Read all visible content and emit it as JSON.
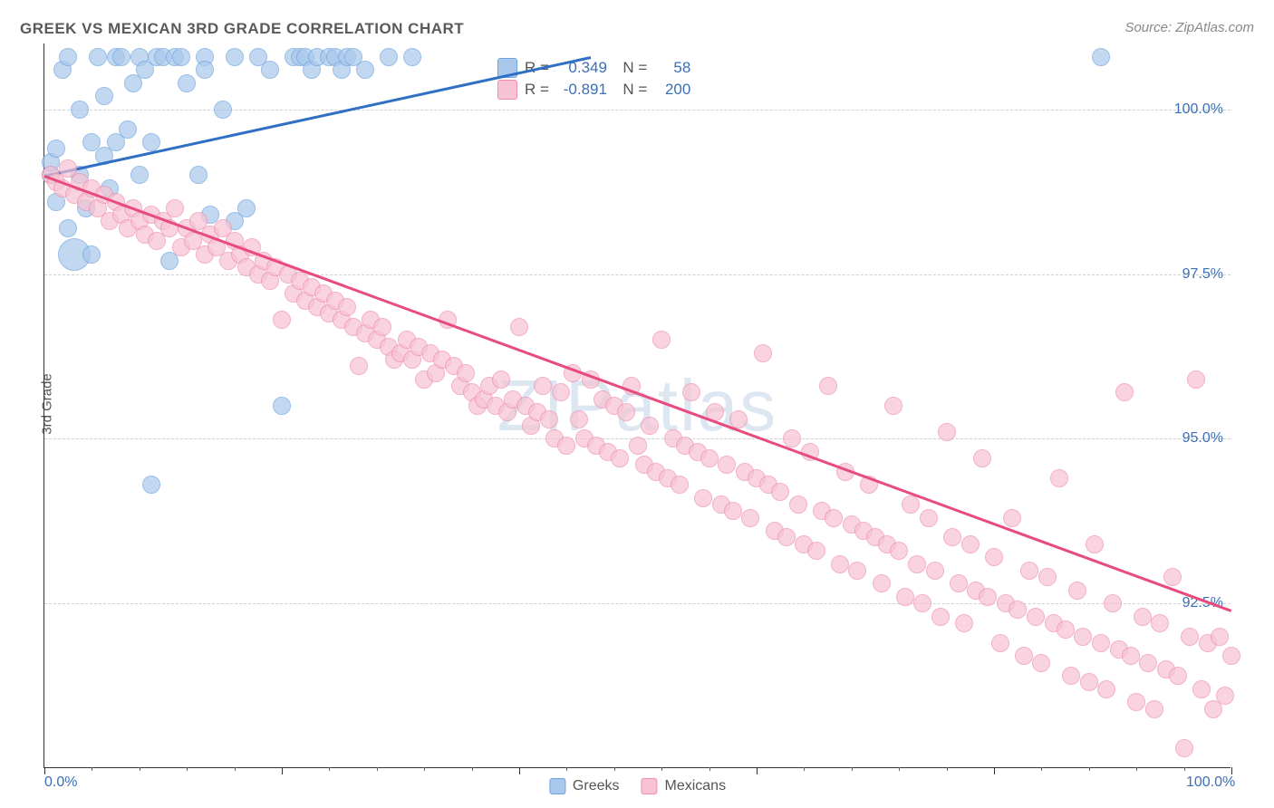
{
  "title": "GREEK VS MEXICAN 3RD GRADE CORRELATION CHART",
  "source": "Source: ZipAtlas.com",
  "ylabel": "3rd Grade",
  "watermark": "ZIPatlas",
  "chart": {
    "type": "scatter",
    "background_color": "#ffffff",
    "grid_color": "#d0d0d0",
    "axis_color": "#333333",
    "tick_label_color": "#3b6fb6",
    "xlim": [
      0,
      100
    ],
    "ylim": [
      90,
      101
    ],
    "yticks": [
      {
        "value": 100.0,
        "label": "100.0%"
      },
      {
        "value": 97.5,
        "label": "97.5%"
      },
      {
        "value": 95.0,
        "label": "95.0%"
      },
      {
        "value": 92.5,
        "label": "92.5%"
      }
    ],
    "xticks_labeled": [
      {
        "value": 0,
        "label": "0.0%"
      },
      {
        "value": 100,
        "label": "100.0%"
      }
    ],
    "xticks_major": [
      0,
      20,
      40,
      60,
      80,
      100
    ],
    "xticks_minor": [
      4,
      8,
      12,
      16,
      24,
      28,
      32,
      36,
      44,
      48,
      52,
      56,
      64,
      68,
      72,
      76,
      84,
      88,
      92,
      96
    ],
    "marker_radius": 10,
    "marker_fill_opacity": 0.35,
    "marker_stroke_width": 1.5,
    "series": [
      {
        "name": "Greeks",
        "color_fill": "#a9c8ec",
        "color_stroke": "#6fa3de",
        "trend_color": "#2f6fc4",
        "r_value": "0.349",
        "n_value": "58",
        "trend": {
          "x1": 0,
          "y1": 99.0,
          "x2": 46,
          "y2": 100.8
        },
        "data": [
          {
            "x": 0.5,
            "y": 99.0
          },
          {
            "x": 0.5,
            "y": 99.2
          },
          {
            "x": 1,
            "y": 99.4
          },
          {
            "x": 1,
            "y": 98.6
          },
          {
            "x": 1.5,
            "y": 100.6
          },
          {
            "x": 2,
            "y": 98.2
          },
          {
            "x": 2,
            "y": 100.8
          },
          {
            "x": 2.5,
            "y": 97.8,
            "r": 18
          },
          {
            "x": 3,
            "y": 99.0
          },
          {
            "x": 3,
            "y": 100.0
          },
          {
            "x": 3.5,
            "y": 98.5
          },
          {
            "x": 4,
            "y": 99.5
          },
          {
            "x": 4,
            "y": 97.8
          },
          {
            "x": 4.5,
            "y": 100.8
          },
          {
            "x": 5,
            "y": 99.3
          },
          {
            "x": 5,
            "y": 100.2
          },
          {
            "x": 5.5,
            "y": 98.8
          },
          {
            "x": 6,
            "y": 100.8
          },
          {
            "x": 6,
            "y": 99.5
          },
          {
            "x": 6.5,
            "y": 100.8
          },
          {
            "x": 7,
            "y": 99.7
          },
          {
            "x": 7.5,
            "y": 100.4
          },
          {
            "x": 8,
            "y": 100.8
          },
          {
            "x": 8,
            "y": 99.0
          },
          {
            "x": 8.5,
            "y": 100.6
          },
          {
            "x": 9,
            "y": 99.5
          },
          {
            "x": 9.5,
            "y": 100.8
          },
          {
            "x": 10,
            "y": 100.8
          },
          {
            "x": 10.5,
            "y": 97.7
          },
          {
            "x": 11,
            "y": 100.8
          },
          {
            "x": 11.5,
            "y": 100.8
          },
          {
            "x": 12,
            "y": 100.4
          },
          {
            "x": 13,
            "y": 99.0
          },
          {
            "x": 13.5,
            "y": 100.8
          },
          {
            "x": 13.5,
            "y": 100.6
          },
          {
            "x": 14,
            "y": 98.4
          },
          {
            "x": 15,
            "y": 100.0
          },
          {
            "x": 16,
            "y": 100.8
          },
          {
            "x": 17,
            "y": 98.5
          },
          {
            "x": 18,
            "y": 100.8
          },
          {
            "x": 19,
            "y": 100.6
          },
          {
            "x": 21,
            "y": 100.8
          },
          {
            "x": 21.5,
            "y": 100.8
          },
          {
            "x": 22,
            "y": 100.8
          },
          {
            "x": 22.5,
            "y": 100.6
          },
          {
            "x": 23,
            "y": 100.8
          },
          {
            "x": 24,
            "y": 100.8
          },
          {
            "x": 24.5,
            "y": 100.8
          },
          {
            "x": 25,
            "y": 100.6
          },
          {
            "x": 25.5,
            "y": 100.8
          },
          {
            "x": 26,
            "y": 100.8
          },
          {
            "x": 27,
            "y": 100.6
          },
          {
            "x": 29,
            "y": 100.8
          },
          {
            "x": 31,
            "y": 100.8
          },
          {
            "x": 20,
            "y": 95.5
          },
          {
            "x": 9,
            "y": 94.3
          },
          {
            "x": 16,
            "y": 98.3
          },
          {
            "x": 89,
            "y": 100.8
          }
        ]
      },
      {
        "name": "Mexicans",
        "color_fill": "#f7c3d3",
        "color_stroke": "#ef8fb0",
        "trend_color": "#e84b7d",
        "r_value": "-0.891",
        "n_value": "200",
        "trend": {
          "x1": 0,
          "y1": 99.0,
          "x2": 100,
          "y2": 92.4
        },
        "data": [
          {
            "x": 0.5,
            "y": 99.0
          },
          {
            "x": 1,
            "y": 98.9
          },
          {
            "x": 1.5,
            "y": 98.8
          },
          {
            "x": 2,
            "y": 99.1
          },
          {
            "x": 2.5,
            "y": 98.7
          },
          {
            "x": 3,
            "y": 98.9
          },
          {
            "x": 3.5,
            "y": 98.6
          },
          {
            "x": 4,
            "y": 98.8
          },
          {
            "x": 4.5,
            "y": 98.5
          },
          {
            "x": 5,
            "y": 98.7
          },
          {
            "x": 5.5,
            "y": 98.3
          },
          {
            "x": 6,
            "y": 98.6
          },
          {
            "x": 6.5,
            "y": 98.4
          },
          {
            "x": 7,
            "y": 98.2
          },
          {
            "x": 7.5,
            "y": 98.5
          },
          {
            "x": 8,
            "y": 98.3
          },
          {
            "x": 8.5,
            "y": 98.1
          },
          {
            "x": 9,
            "y": 98.4
          },
          {
            "x": 9.5,
            "y": 98.0
          },
          {
            "x": 10,
            "y": 98.3
          },
          {
            "x": 10.5,
            "y": 98.2
          },
          {
            "x": 11,
            "y": 98.5
          },
          {
            "x": 11.5,
            "y": 97.9
          },
          {
            "x": 12,
            "y": 98.2
          },
          {
            "x": 12.5,
            "y": 98.0
          },
          {
            "x": 13,
            "y": 98.3
          },
          {
            "x": 13.5,
            "y": 97.8
          },
          {
            "x": 14,
            "y": 98.1
          },
          {
            "x": 14.5,
            "y": 97.9
          },
          {
            "x": 15,
            "y": 98.2
          },
          {
            "x": 15.5,
            "y": 97.7
          },
          {
            "x": 16,
            "y": 98.0
          },
          {
            "x": 16.5,
            "y": 97.8
          },
          {
            "x": 17,
            "y": 97.6
          },
          {
            "x": 17.5,
            "y": 97.9
          },
          {
            "x": 18,
            "y": 97.5
          },
          {
            "x": 18.5,
            "y": 97.7
          },
          {
            "x": 19,
            "y": 97.4
          },
          {
            "x": 19.5,
            "y": 97.6
          },
          {
            "x": 20,
            "y": 96.8
          },
          {
            "x": 20.5,
            "y": 97.5
          },
          {
            "x": 21,
            "y": 97.2
          },
          {
            "x": 21.5,
            "y": 97.4
          },
          {
            "x": 22,
            "y": 97.1
          },
          {
            "x": 22.5,
            "y": 97.3
          },
          {
            "x": 23,
            "y": 97.0
          },
          {
            "x": 23.5,
            "y": 97.2
          },
          {
            "x": 24,
            "y": 96.9
          },
          {
            "x": 24.5,
            "y": 97.1
          },
          {
            "x": 25,
            "y": 96.8
          },
          {
            "x": 25.5,
            "y": 97.0
          },
          {
            "x": 26,
            "y": 96.7
          },
          {
            "x": 26.5,
            "y": 96.1
          },
          {
            "x": 27,
            "y": 96.6
          },
          {
            "x": 27.5,
            "y": 96.8
          },
          {
            "x": 28,
            "y": 96.5
          },
          {
            "x": 28.5,
            "y": 96.7
          },
          {
            "x": 29,
            "y": 96.4
          },
          {
            "x": 29.5,
            "y": 96.2
          },
          {
            "x": 30,
            "y": 96.3
          },
          {
            "x": 30.5,
            "y": 96.5
          },
          {
            "x": 31,
            "y": 96.2
          },
          {
            "x": 31.5,
            "y": 96.4
          },
          {
            "x": 32,
            "y": 95.9
          },
          {
            "x": 32.5,
            "y": 96.3
          },
          {
            "x": 33,
            "y": 96.0
          },
          {
            "x": 33.5,
            "y": 96.2
          },
          {
            "x": 34,
            "y": 96.8
          },
          {
            "x": 34.5,
            "y": 96.1
          },
          {
            "x": 35,
            "y": 95.8
          },
          {
            "x": 35.5,
            "y": 96.0
          },
          {
            "x": 36,
            "y": 95.7
          },
          {
            "x": 36.5,
            "y": 95.5
          },
          {
            "x": 37,
            "y": 95.6
          },
          {
            "x": 37.5,
            "y": 95.8
          },
          {
            "x": 38,
            "y": 95.5
          },
          {
            "x": 38.5,
            "y": 95.9
          },
          {
            "x": 39,
            "y": 95.4
          },
          {
            "x": 39.5,
            "y": 95.6
          },
          {
            "x": 40,
            "y": 96.7
          },
          {
            "x": 40.5,
            "y": 95.5
          },
          {
            "x": 41,
            "y": 95.2
          },
          {
            "x": 41.5,
            "y": 95.4
          },
          {
            "x": 42,
            "y": 95.8
          },
          {
            "x": 42.5,
            "y": 95.3
          },
          {
            "x": 43,
            "y": 95.0
          },
          {
            "x": 43.5,
            "y": 95.7
          },
          {
            "x": 44,
            "y": 94.9
          },
          {
            "x": 44.5,
            "y": 96.0
          },
          {
            "x": 45,
            "y": 95.3
          },
          {
            "x": 45.5,
            "y": 95.0
          },
          {
            "x": 46,
            "y": 95.9
          },
          {
            "x": 46.5,
            "y": 94.9
          },
          {
            "x": 47,
            "y": 95.6
          },
          {
            "x": 47.5,
            "y": 94.8
          },
          {
            "x": 48,
            "y": 95.5
          },
          {
            "x": 48.5,
            "y": 94.7
          },
          {
            "x": 49,
            "y": 95.4
          },
          {
            "x": 49.5,
            "y": 95.8
          },
          {
            "x": 50,
            "y": 94.9
          },
          {
            "x": 50.5,
            "y": 94.6
          },
          {
            "x": 51,
            "y": 95.2
          },
          {
            "x": 51.5,
            "y": 94.5
          },
          {
            "x": 52,
            "y": 96.5
          },
          {
            "x": 52.5,
            "y": 94.4
          },
          {
            "x": 53,
            "y": 95.0
          },
          {
            "x": 53.5,
            "y": 94.3
          },
          {
            "x": 54,
            "y": 94.9
          },
          {
            "x": 54.5,
            "y": 95.7
          },
          {
            "x": 55,
            "y": 94.8
          },
          {
            "x": 55.5,
            "y": 94.1
          },
          {
            "x": 56,
            "y": 94.7
          },
          {
            "x": 56.5,
            "y": 95.4
          },
          {
            "x": 57,
            "y": 94.0
          },
          {
            "x": 57.5,
            "y": 94.6
          },
          {
            "x": 58,
            "y": 93.9
          },
          {
            "x": 58.5,
            "y": 95.3
          },
          {
            "x": 59,
            "y": 94.5
          },
          {
            "x": 59.5,
            "y": 93.8
          },
          {
            "x": 60,
            "y": 94.4
          },
          {
            "x": 60.5,
            "y": 96.3
          },
          {
            "x": 61,
            "y": 94.3
          },
          {
            "x": 61.5,
            "y": 93.6
          },
          {
            "x": 62,
            "y": 94.2
          },
          {
            "x": 62.5,
            "y": 93.5
          },
          {
            "x": 63,
            "y": 95.0
          },
          {
            "x": 63.5,
            "y": 94.0
          },
          {
            "x": 64,
            "y": 93.4
          },
          {
            "x": 64.5,
            "y": 94.8
          },
          {
            "x": 65,
            "y": 93.3
          },
          {
            "x": 65.5,
            "y": 93.9
          },
          {
            "x": 66,
            "y": 95.8
          },
          {
            "x": 66.5,
            "y": 93.8
          },
          {
            "x": 67,
            "y": 93.1
          },
          {
            "x": 67.5,
            "y": 94.5
          },
          {
            "x": 68,
            "y": 93.7
          },
          {
            "x": 68.5,
            "y": 93.0
          },
          {
            "x": 69,
            "y": 93.6
          },
          {
            "x": 69.5,
            "y": 94.3
          },
          {
            "x": 70,
            "y": 93.5
          },
          {
            "x": 70.5,
            "y": 92.8
          },
          {
            "x": 71,
            "y": 93.4
          },
          {
            "x": 71.5,
            "y": 95.5
          },
          {
            "x": 72,
            "y": 93.3
          },
          {
            "x": 72.5,
            "y": 92.6
          },
          {
            "x": 73,
            "y": 94.0
          },
          {
            "x": 73.5,
            "y": 93.1
          },
          {
            "x": 74,
            "y": 92.5
          },
          {
            "x": 74.5,
            "y": 93.8
          },
          {
            "x": 75,
            "y": 93.0
          },
          {
            "x": 75.5,
            "y": 92.3
          },
          {
            "x": 76,
            "y": 95.1
          },
          {
            "x": 76.5,
            "y": 93.5
          },
          {
            "x": 77,
            "y": 92.8
          },
          {
            "x": 77.5,
            "y": 92.2
          },
          {
            "x": 78,
            "y": 93.4
          },
          {
            "x": 78.5,
            "y": 92.7
          },
          {
            "x": 79,
            "y": 94.7
          },
          {
            "x": 79.5,
            "y": 92.6
          },
          {
            "x": 80,
            "y": 93.2
          },
          {
            "x": 80.5,
            "y": 91.9
          },
          {
            "x": 81,
            "y": 92.5
          },
          {
            "x": 81.5,
            "y": 93.8
          },
          {
            "x": 82,
            "y": 92.4
          },
          {
            "x": 82.5,
            "y": 91.7
          },
          {
            "x": 83,
            "y": 93.0
          },
          {
            "x": 83.5,
            "y": 92.3
          },
          {
            "x": 84,
            "y": 91.6
          },
          {
            "x": 84.5,
            "y": 92.9
          },
          {
            "x": 85,
            "y": 92.2
          },
          {
            "x": 85.5,
            "y": 94.4
          },
          {
            "x": 86,
            "y": 92.1
          },
          {
            "x": 86.5,
            "y": 91.4
          },
          {
            "x": 87,
            "y": 92.7
          },
          {
            "x": 87.5,
            "y": 92.0
          },
          {
            "x": 88,
            "y": 91.3
          },
          {
            "x": 88.5,
            "y": 93.4
          },
          {
            "x": 89,
            "y": 91.9
          },
          {
            "x": 89.5,
            "y": 91.2
          },
          {
            "x": 90,
            "y": 92.5
          },
          {
            "x": 90.5,
            "y": 91.8
          },
          {
            "x": 91,
            "y": 95.7
          },
          {
            "x": 91.5,
            "y": 91.7
          },
          {
            "x": 92,
            "y": 91.0
          },
          {
            "x": 92.5,
            "y": 92.3
          },
          {
            "x": 93,
            "y": 91.6
          },
          {
            "x": 93.5,
            "y": 90.9
          },
          {
            "x": 94,
            "y": 92.2
          },
          {
            "x": 94.5,
            "y": 91.5
          },
          {
            "x": 95,
            "y": 92.9
          },
          {
            "x": 95.5,
            "y": 91.4
          },
          {
            "x": 96,
            "y": 90.3
          },
          {
            "x": 96.5,
            "y": 92.0
          },
          {
            "x": 97,
            "y": 95.9
          },
          {
            "x": 97.5,
            "y": 91.2
          },
          {
            "x": 98,
            "y": 91.9
          },
          {
            "x": 98.5,
            "y": 90.9
          },
          {
            "x": 99,
            "y": 92.0
          },
          {
            "x": 99.5,
            "y": 91.1
          },
          {
            "x": 100,
            "y": 91.7
          }
        ]
      }
    ],
    "bottom_legend": [
      {
        "label": "Greeks",
        "swatch_fill": "#a9c8ec",
        "swatch_stroke": "#6fa3de"
      },
      {
        "label": "Mexicans",
        "swatch_fill": "#f7c3d3",
        "swatch_stroke": "#ef8fb0"
      }
    ]
  }
}
